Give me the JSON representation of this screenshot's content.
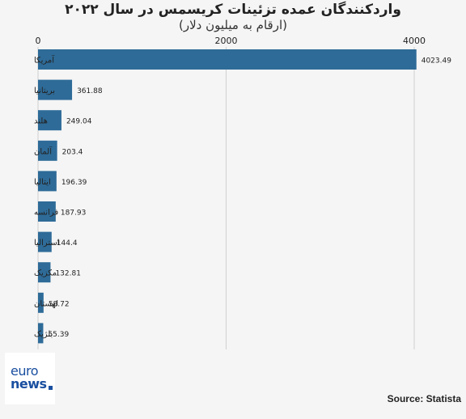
{
  "chart_data": {
    "type": "bar",
    "orientation": "horizontal",
    "title": "واردکنندگان عمده تزئینات کریسمس در سال ۲۰۲۲",
    "subtitle": "(ارقام به میلیون دلار)",
    "categories": [
      "آمریکا",
      "بریتانیا",
      "هلند",
      "آلمان",
      "ایتالیا",
      "فرانسه",
      "استرالیا",
      "مکزیک",
      "لهستان",
      "بلژیک"
    ],
    "values": [
      4023.49,
      361.88,
      249.04,
      203.4,
      196.39,
      187.93,
      144.4,
      132.81,
      58.72,
      55.39
    ],
    "value_labels": [
      "4023.49",
      "361.88",
      "249.04",
      "203.4",
      "196.39",
      "187.93",
      "144.4",
      "132.81",
      "58.72",
      "55.39"
    ],
    "xlim": [
      0,
      4600
    ],
    "xticks": [
      "0",
      "2000",
      "4000"
    ],
    "xtick_values": [
      0,
      2000,
      4000
    ],
    "grid": true,
    "bar_color": "#2e6b98",
    "grid_color": "#d0d0d0"
  },
  "logo": {
    "line1": "euro",
    "line2": "news"
  },
  "source": "Source: Statista"
}
